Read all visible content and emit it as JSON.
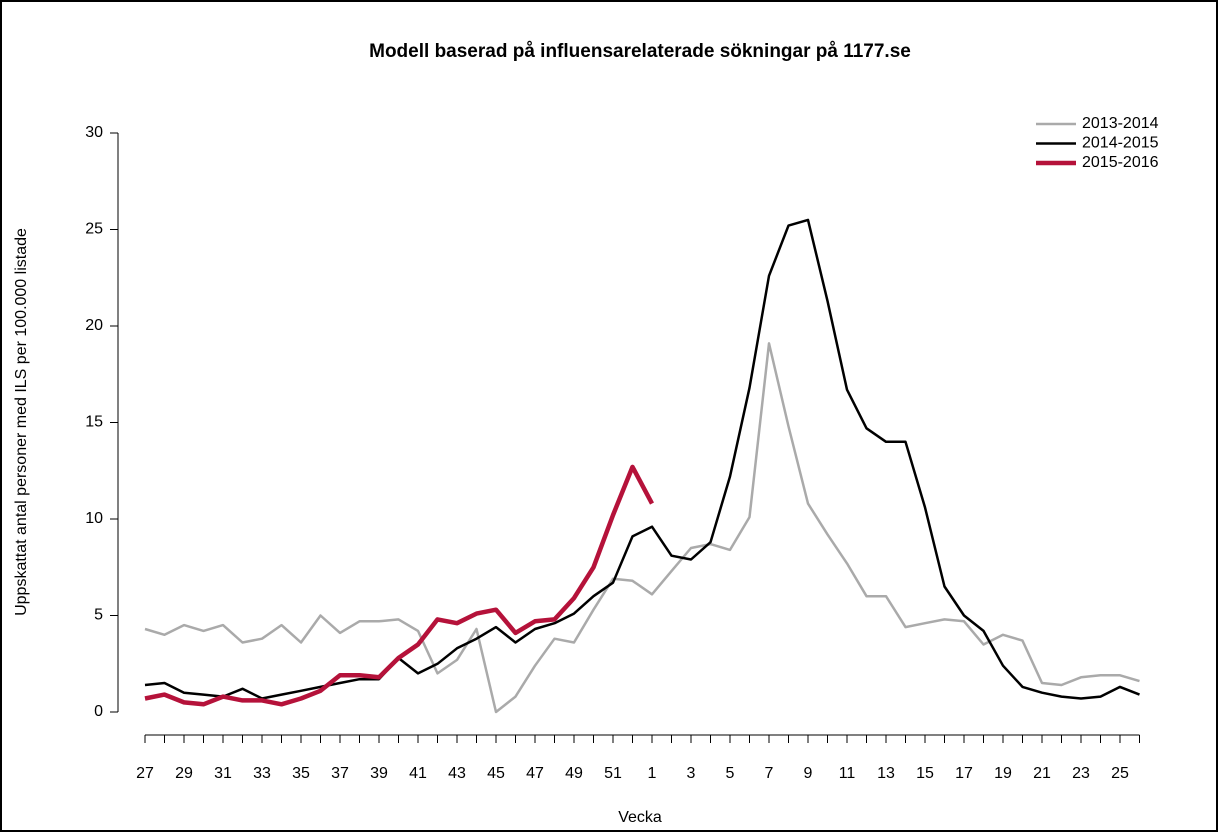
{
  "chart_data": {
    "type": "line",
    "title": "Modell baserad på influensarelaterade sökningar på 1177.se",
    "x_label": "Vecka",
    "y_label": "Uppskattat antal personer med ILS per 100.000 listade",
    "categories": [
      "27",
      null,
      "29",
      null,
      "31",
      null,
      "33",
      null,
      "35",
      null,
      "37",
      null,
      "39",
      null,
      "41",
      null,
      "43",
      null,
      "45",
      null,
      "47",
      null,
      "49",
      null,
      "51",
      null,
      "1",
      null,
      "3",
      null,
      "5",
      null,
      "7",
      null,
      "9",
      null,
      "11",
      null,
      "13",
      null,
      "15",
      null,
      "17",
      null,
      "19",
      null,
      "21",
      null,
      "23",
      null,
      "25",
      null
    ],
    "ylim": [
      0,
      30
    ],
    "yticks": [
      0,
      5,
      10,
      15,
      20,
      25,
      30
    ],
    "grid": false,
    "legend": "top-right",
    "series": [
      {
        "name": "2013-2014",
        "color": "#aaaaaa",
        "width": 2.5,
        "values": [
          4.3,
          4.0,
          4.5,
          4.2,
          4.5,
          3.6,
          3.8,
          4.5,
          3.6,
          5.0,
          4.1,
          4.7,
          4.7,
          4.8,
          4.2,
          2.0,
          2.7,
          4.3,
          0.0,
          0.8,
          2.4,
          3.8,
          3.6,
          5.3,
          6.9,
          6.8,
          6.1,
          7.3,
          8.5,
          8.7,
          8.4,
          10.1,
          19.1,
          14.8,
          10.8,
          9.2,
          7.7,
          6.0,
          6.0,
          4.4,
          4.6,
          4.8,
          4.7,
          3.5,
          4.0,
          3.7,
          1.5,
          1.4,
          1.8,
          1.9,
          1.9,
          1.6
        ]
      },
      {
        "name": "2014-2015",
        "color": "#000000",
        "width": 2.5,
        "values": [
          1.4,
          1.5,
          1.0,
          0.9,
          0.8,
          1.2,
          0.7,
          0.9,
          1.1,
          1.3,
          1.5,
          1.7,
          1.7,
          2.8,
          2.0,
          2.5,
          3.3,
          3.8,
          4.4,
          3.6,
          4.3,
          4.6,
          5.1,
          6.0,
          6.7,
          9.1,
          9.6,
          8.1,
          7.9,
          8.8,
          12.2,
          16.8,
          22.6,
          25.2,
          25.5,
          21.3,
          16.7,
          14.7,
          14.0,
          14.0,
          10.6,
          6.5,
          5.0,
          4.2,
          2.4,
          1.3,
          1.0,
          0.8,
          0.7,
          0.8,
          1.3,
          0.9
        ]
      },
      {
        "name": "2015-2016",
        "color": "#b5123a",
        "width": 4.5,
        "values": [
          0.7,
          0.9,
          0.5,
          0.4,
          0.8,
          0.6,
          0.6,
          0.4,
          0.7,
          1.1,
          1.9,
          1.9,
          1.8,
          2.8,
          3.5,
          4.8,
          4.6,
          5.1,
          5.3,
          4.1,
          4.7,
          4.8,
          5.9,
          7.5,
          10.2,
          12.7,
          10.8,
          null,
          null,
          null,
          null,
          null,
          null,
          null,
          null,
          null,
          null,
          null,
          null,
          null,
          null,
          null,
          null,
          null,
          null,
          null,
          null,
          null,
          null,
          null,
          null,
          null
        ]
      }
    ]
  }
}
